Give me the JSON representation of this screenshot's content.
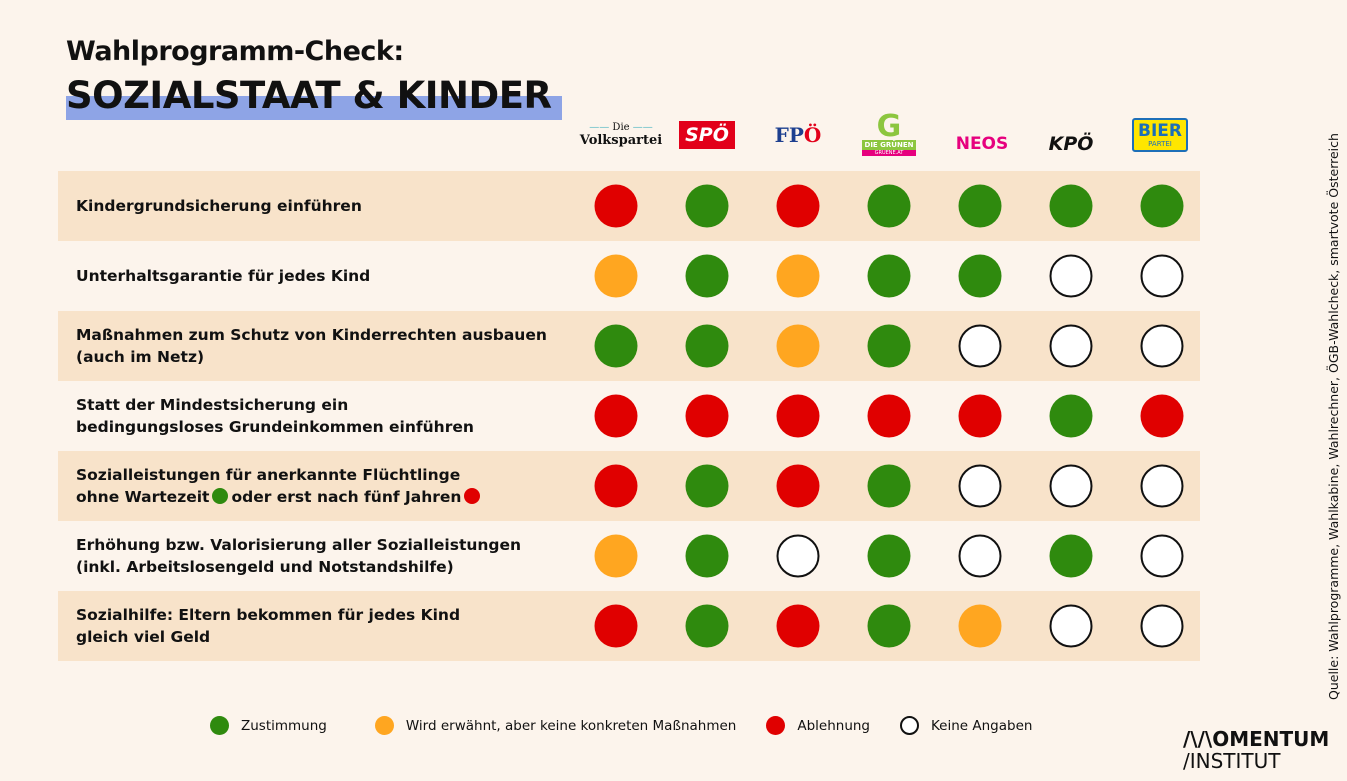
{
  "title_line1": "Wahlprogramm-Check:",
  "title_line2": "SOZIALSTAAT & KINDER",
  "parties": [
    {
      "name": "Die Volkspartei",
      "l1": "Die",
      "l2": "Volkspartei"
    },
    {
      "name": "SPÖ"
    },
    {
      "name": "FPÖ",
      "l1": "FP",
      "l2": "Ö"
    },
    {
      "name": "Die Grünen",
      "l1": "DIE GRÜNEN",
      "l2": "GRUENE.AT"
    },
    {
      "name": "NEOS"
    },
    {
      "name": "KPÖ"
    },
    {
      "name": "Bierpartei",
      "l1": "BIER",
      "l2": "PARTEI"
    }
  ],
  "colors": {
    "green": "#2f8a0e",
    "orange": "#ffa620",
    "red": "#e00000",
    "white": "#ffffff"
  },
  "rows": [
    {
      "line1": "Kindergrundsicherung einführen",
      "ratings": [
        "red",
        "green",
        "red",
        "green",
        "green",
        "green",
        "green"
      ]
    },
    {
      "line1": "Unterhaltsgarantie für jedes Kind",
      "ratings": [
        "orange",
        "green",
        "orange",
        "green",
        "green",
        "white",
        "white"
      ]
    },
    {
      "line1": "Maßnahmen zum Schutz von Kinderrechten ausbauen",
      "line2": "(auch im Netz)",
      "ratings": [
        "green",
        "green",
        "orange",
        "green",
        "white",
        "white",
        "white"
      ]
    },
    {
      "line1": "Statt der Mindestsicherung ein",
      "line2": "bedingungsloses Grundeinkommen einführen",
      "ratings": [
        "red",
        "red",
        "red",
        "red",
        "red",
        "green",
        "red"
      ]
    },
    {
      "line1": "Sozialleistungen für anerkannte Flüchtlinge",
      "line2a": "ohne Wartezeit",
      "line2b": "oder erst nach fünf Jahren",
      "ratings": [
        "red",
        "green",
        "red",
        "green",
        "white",
        "white",
        "white"
      ]
    },
    {
      "line1": "Erhöhung bzw. Valorisierung aller Sozialleistungen",
      "line2": "(inkl. Arbeitslosengeld und Notstandshilfe)",
      "ratings": [
        "orange",
        "green",
        "white",
        "green",
        "white",
        "green",
        "white"
      ]
    },
    {
      "line1": "Sozialhilfe: Eltern bekommen für jedes Kind",
      "line2": "gleich viel Geld",
      "ratings": [
        "red",
        "green",
        "red",
        "green",
        "orange",
        "white",
        "white"
      ]
    }
  ],
  "legend": [
    {
      "color": "green",
      "label": "Zustimmung"
    },
    {
      "color": "orange",
      "label": "Wird erwähnt, aber keine konkreten Maßnahmen"
    },
    {
      "color": "red",
      "label": "Ablehnung"
    },
    {
      "color": "white",
      "label": "Keine Angaben"
    }
  ],
  "source": "Quelle: Wahlprogramme, Wahlkabine, Wahlrechner, ÖGB-Wahlcheck, smartvote Österreich",
  "brand_line1": "/\\/\\OMENTUM",
  "brand_line2": "/INSTITUT"
}
